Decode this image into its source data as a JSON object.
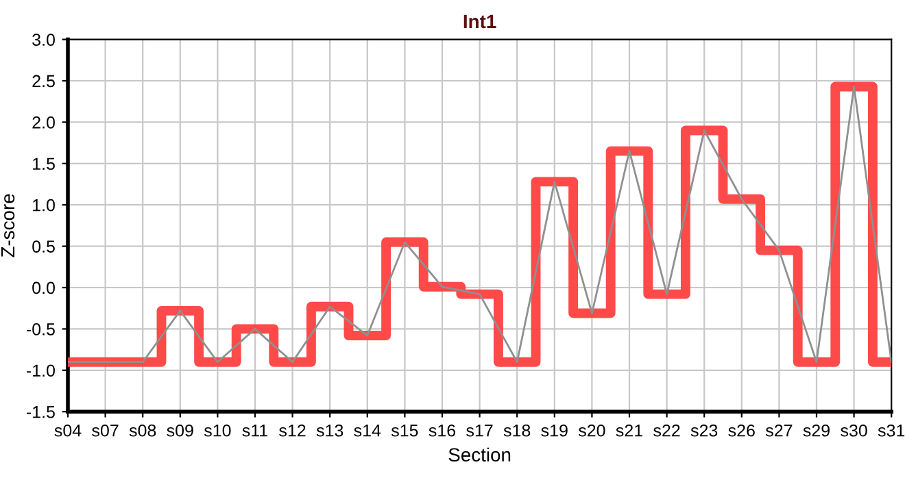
{
  "chart_data": {
    "type": "step",
    "title": "Int1",
    "xlabel": "Section",
    "ylabel": "Z-score",
    "categories": [
      "s04",
      "s07",
      "s08",
      "s09",
      "s10",
      "s11",
      "s12",
      "s13",
      "s14",
      "s15",
      "s16",
      "s17",
      "s18",
      "s19",
      "s20",
      "s21",
      "s22",
      "s23",
      "s26",
      "s27",
      "s29",
      "s30",
      "s31"
    ],
    "series": [
      {
        "color": "#ff4040",
        "values": [
          -0.9,
          -0.9,
          -0.9,
          -0.28,
          -0.9,
          -0.5,
          -0.9,
          -0.23,
          -0.58,
          0.55,
          0.01,
          -0.08,
          -0.9,
          1.28,
          -0.31,
          1.65,
          -0.08,
          1.9,
          1.07,
          0.45,
          -0.9,
          2.43,
          -0.9
        ]
      },
      {
        "type": "line",
        "color": "#909090",
        "values": [
          -0.9,
          -0.9,
          -0.9,
          -0.28,
          -0.9,
          -0.5,
          -0.9,
          -0.23,
          -0.58,
          0.55,
          0.01,
          -0.08,
          -0.9,
          1.28,
          -0.31,
          1.65,
          -0.08,
          1.9,
          1.07,
          0.45,
          -0.9,
          2.43,
          -0.9
        ]
      }
    ],
    "ylim": [
      -1.5,
      3.0
    ],
    "yticks": [
      {
        "value": -1.5,
        "label": "-1.5"
      },
      {
        "value": -1.0,
        "label": "-1.0"
      },
      {
        "value": -0.5,
        "label": "-0.5"
      },
      {
        "value": 0.0,
        "label": "0.0"
      },
      {
        "value": 0.5,
        "label": "0.5"
      },
      {
        "value": 1.0,
        "label": "1.0"
      },
      {
        "value": 1.5,
        "label": "1.5"
      },
      {
        "value": 2.0,
        "label": "2.0"
      },
      {
        "value": 2.5,
        "label": "2.5"
      },
      {
        "value": 3.0,
        "label": "3.0"
      }
    ],
    "grid": true,
    "marker": "none",
    "line_style": "solid"
  }
}
